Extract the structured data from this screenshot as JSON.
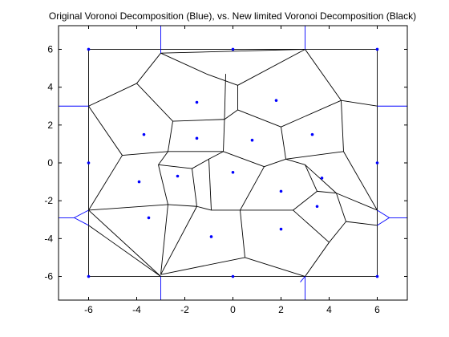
{
  "chart_data": {
    "type": "scatter",
    "title": "Original Voronoi Decomposition (Blue), vs. New limited Voronoi Decomposition (Black)",
    "xlim": [
      -7.25,
      7.25
    ],
    "ylim": [
      -7.25,
      7.25
    ],
    "xticks": [
      -6,
      -4,
      -2,
      0,
      2,
      4,
      6
    ],
    "yticks": [
      -6,
      -4,
      -2,
      0,
      2,
      4,
      6
    ],
    "grid": false,
    "colors": {
      "points": "#0000ff",
      "original_voronoi": "#0000ff",
      "limited_voronoi": "#000000",
      "axes": "#000000"
    },
    "points": [
      [
        -6,
        6
      ],
      [
        0,
        6
      ],
      [
        6,
        6
      ],
      [
        -6,
        0
      ],
      [
        6,
        0
      ],
      [
        -6,
        -6
      ],
      [
        0,
        -6
      ],
      [
        6,
        -6
      ],
      [
        -1.5,
        3.2
      ],
      [
        1.8,
        3.3
      ],
      [
        -3.7,
        1.5
      ],
      [
        -1.5,
        1.3
      ],
      [
        0.8,
        1.2
      ],
      [
        3.3,
        1.5
      ],
      [
        -3.9,
        -1.0
      ],
      [
        -2.3,
        -0.7
      ],
      [
        0,
        -0.5
      ],
      [
        3.7,
        -0.8
      ],
      [
        2.0,
        -1.5
      ],
      [
        3.5,
        -2.3
      ],
      [
        -3.5,
        -2.9
      ],
      [
        -0.9,
        -3.9
      ],
      [
        2.0,
        -3.5
      ]
    ],
    "original_voronoi_segments": [
      [
        [
          -3,
          7.25
        ],
        [
          -3,
          5.8
        ]
      ],
      [
        [
          3,
          7.25
        ],
        [
          3,
          6.0
        ]
      ],
      [
        [
          6,
          3.0
        ],
        [
          7.25,
          3.0
        ]
      ],
      [
        [
          -6,
          3.0
        ],
        [
          -7.25,
          3.0
        ]
      ],
      [
        [
          -6,
          -2.5
        ],
        [
          -6.6,
          -2.9
        ]
      ],
      [
        [
          -6.6,
          -2.9
        ],
        [
          -7.25,
          -2.9
        ]
      ],
      [
        [
          -6.6,
          -2.9
        ],
        [
          -6,
          -3.3
        ]
      ],
      [
        [
          6,
          -2.5
        ],
        [
          6.5,
          -2.9
        ]
      ],
      [
        [
          6.5,
          -2.9
        ],
        [
          7.25,
          -2.9
        ]
      ],
      [
        [
          6.5,
          -2.9
        ],
        [
          6,
          -3.3
        ]
      ],
      [
        [
          -3,
          -6.0
        ],
        [
          -3,
          -7.25
        ]
      ],
      [
        [
          3,
          -6.0
        ],
        [
          3,
          -7.25
        ]
      ],
      [
        [
          3,
          -6.0
        ],
        [
          2.8,
          -6.3
        ]
      ]
    ],
    "limited_voronoi_segments": [
      [
        [
          -6,
          6
        ],
        [
          6,
          6
        ]
      ],
      [
        [
          6,
          6
        ],
        [
          6,
          -6
        ]
      ],
      [
        [
          6,
          -6
        ],
        [
          -6,
          -6
        ]
      ],
      [
        [
          -6,
          -6
        ],
        [
          -6,
          6
        ]
      ],
      [
        [
          -3,
          5.8
        ],
        [
          3,
          6.0
        ]
      ],
      [
        [
          -3,
          5.8
        ],
        [
          -4,
          4.2
        ]
      ],
      [
        [
          -4,
          4.2
        ],
        [
          -6,
          3.0
        ]
      ],
      [
        [
          -3,
          5.8
        ],
        [
          -1.1,
          4.7
        ]
      ],
      [
        [
          3,
          6.0
        ],
        [
          0.2,
          4.1
        ]
      ],
      [
        [
          3,
          6.0
        ],
        [
          4.5,
          3.3
        ]
      ],
      [
        [
          4.5,
          3.3
        ],
        [
          6,
          3.0
        ]
      ],
      [
        [
          -6,
          3.0
        ],
        [
          -4.6,
          0.4
        ]
      ],
      [
        [
          -4.6,
          0.4
        ],
        [
          -6,
          -2.5
        ]
      ],
      [
        [
          -4,
          4.2
        ],
        [
          -2.5,
          2.2
        ]
      ],
      [
        [
          -2.5,
          2.2
        ],
        [
          -0.35,
          2.3
        ]
      ],
      [
        [
          -0.35,
          2.3
        ],
        [
          -0.3,
          4.7
        ]
      ],
      [
        [
          -1.1,
          4.7
        ],
        [
          0.2,
          4.1
        ]
      ],
      [
        [
          0.2,
          4.1
        ],
        [
          0.2,
          2.8
        ]
      ],
      [
        [
          0.2,
          2.8
        ],
        [
          -0.35,
          2.3
        ]
      ],
      [
        [
          0.2,
          2.8
        ],
        [
          2.0,
          1.9
        ]
      ],
      [
        [
          2.0,
          1.9
        ],
        [
          4.5,
          3.3
        ]
      ],
      [
        [
          2.0,
          1.9
        ],
        [
          2.2,
          0.2
        ]
      ],
      [
        [
          4.5,
          3.3
        ],
        [
          4.6,
          0.6
        ]
      ],
      [
        [
          4.6,
          0.6
        ],
        [
          6,
          -2.5
        ]
      ],
      [
        [
          4.6,
          0.6
        ],
        [
          2.2,
          0.2
        ]
      ],
      [
        [
          -2.5,
          2.2
        ],
        [
          -2.7,
          0.6
        ]
      ],
      [
        [
          -0.35,
          2.3
        ],
        [
          -0.4,
          0.6
        ]
      ],
      [
        [
          -2.7,
          0.6
        ],
        [
          -0.4,
          0.6
        ]
      ],
      [
        [
          -0.4,
          0.6
        ],
        [
          1.3,
          -0.2
        ]
      ],
      [
        [
          1.3,
          -0.2
        ],
        [
          2.2,
          0.2
        ]
      ],
      [
        [
          2.2,
          0.2
        ],
        [
          3.0,
          -0.1
        ]
      ],
      [
        [
          3.0,
          -0.1
        ],
        [
          4.3,
          -1.6
        ]
      ],
      [
        [
          4.3,
          -1.6
        ],
        [
          6,
          -2.5
        ]
      ],
      [
        [
          3.0,
          -0.1
        ],
        [
          3.5,
          -1.5
        ]
      ],
      [
        [
          3.5,
          -1.5
        ],
        [
          4.3,
          -1.6
        ]
      ],
      [
        [
          -4.6,
          0.4
        ],
        [
          -2.7,
          0.6
        ]
      ],
      [
        [
          -2.7,
          0.6
        ],
        [
          -3.1,
          -0.1
        ]
      ],
      [
        [
          -3.1,
          -0.1
        ],
        [
          -2.7,
          -2.2
        ]
      ],
      [
        [
          -2.7,
          -2.2
        ],
        [
          -6,
          -2.5
        ]
      ],
      [
        [
          -3.1,
          -0.1
        ],
        [
          -1.7,
          -0.3
        ]
      ],
      [
        [
          -1.7,
          -0.3
        ],
        [
          -1.5,
          -2.3
        ]
      ],
      [
        [
          -1.5,
          -2.3
        ],
        [
          -2.7,
          -2.2
        ]
      ],
      [
        [
          -1.7,
          -0.3
        ],
        [
          -1.0,
          0.2
        ]
      ],
      [
        [
          -1.0,
          0.2
        ],
        [
          -0.4,
          0.6
        ]
      ],
      [
        [
          -1.0,
          0.2
        ],
        [
          -0.9,
          -2.5
        ]
      ],
      [
        [
          -0.9,
          -2.5
        ],
        [
          -1.5,
          -2.3
        ]
      ],
      [
        [
          1.3,
          -0.2
        ],
        [
          0.3,
          -2.5
        ]
      ],
      [
        [
          0.3,
          -2.5
        ],
        [
          -0.9,
          -2.5
        ]
      ],
      [
        [
          3.5,
          -1.5
        ],
        [
          2.5,
          -2.5
        ]
      ],
      [
        [
          2.5,
          -2.5
        ],
        [
          0.3,
          -2.5
        ]
      ],
      [
        [
          4.3,
          -1.6
        ],
        [
          4.7,
          -3.1
        ]
      ],
      [
        [
          4.7,
          -3.1
        ],
        [
          6,
          -3.3
        ]
      ],
      [
        [
          4.7,
          -3.1
        ],
        [
          4.0,
          -4.2
        ]
      ],
      [
        [
          4.0,
          -4.2
        ],
        [
          2.5,
          -2.5
        ]
      ],
      [
        [
          4.0,
          -4.2
        ],
        [
          3.0,
          -6.0
        ]
      ],
      [
        [
          -6,
          -2.5
        ],
        [
          -3,
          -6.0
        ]
      ],
      [
        [
          -6,
          -3.3
        ],
        [
          -3,
          -6.0
        ]
      ],
      [
        [
          -2.7,
          -2.2
        ],
        [
          -3.0,
          -5.9
        ]
      ],
      [
        [
          -1.5,
          -2.3
        ],
        [
          -3.0,
          -5.9
        ]
      ],
      [
        [
          0.3,
          -2.5
        ],
        [
          0.5,
          -5.0
        ]
      ],
      [
        [
          0.5,
          -5.0
        ],
        [
          3.0,
          -6.0
        ]
      ],
      [
        [
          0.5,
          -5.0
        ],
        [
          -3.0,
          -5.9
        ]
      ]
    ]
  }
}
